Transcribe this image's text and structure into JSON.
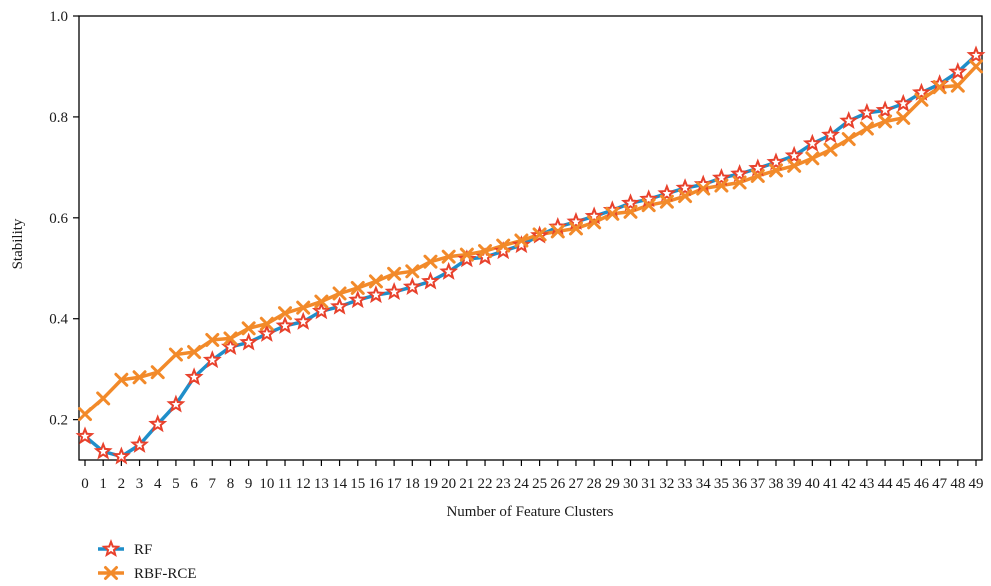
{
  "chart_data": {
    "type": "line",
    "title": "",
    "xlabel": "Number of Feature Clusters",
    "ylabel": "Stability",
    "xlim": [
      0,
      49
    ],
    "ylim": [
      0.12,
      1.0
    ],
    "yticks": [
      0.2,
      0.4,
      0.6,
      0.8,
      1.0
    ],
    "ytick_labels": [
      "0.2",
      "0.4",
      "0.6",
      "0.8",
      "1.0"
    ],
    "x": [
      0,
      1,
      2,
      3,
      4,
      5,
      6,
      7,
      8,
      9,
      10,
      11,
      12,
      13,
      14,
      15,
      16,
      17,
      18,
      19,
      20,
      21,
      22,
      23,
      24,
      25,
      26,
      27,
      28,
      29,
      30,
      31,
      32,
      33,
      34,
      35,
      36,
      37,
      38,
      39,
      40,
      41,
      42,
      43,
      44,
      45,
      46,
      47,
      48,
      49
    ],
    "legend_position": "bottom-left",
    "grid": false,
    "series": [
      {
        "name": "RF",
        "color": "#1f8ec9",
        "marker": "star",
        "marker_color": "#e8412c",
        "values": [
          0.167,
          0.137,
          0.127,
          0.15,
          0.191,
          0.23,
          0.284,
          0.318,
          0.344,
          0.353,
          0.37,
          0.386,
          0.394,
          0.415,
          0.424,
          0.437,
          0.447,
          0.453,
          0.463,
          0.474,
          0.493,
          0.518,
          0.522,
          0.534,
          0.546,
          0.565,
          0.582,
          0.592,
          0.603,
          0.615,
          0.629,
          0.637,
          0.648,
          0.659,
          0.666,
          0.679,
          0.687,
          0.698,
          0.71,
          0.723,
          0.747,
          0.764,
          0.792,
          0.808,
          0.813,
          0.826,
          0.848,
          0.865,
          0.889,
          0.922
        ]
      },
      {
        "name": "RBF-RCE",
        "color": "#f28a2a",
        "marker": "x",
        "marker_color": "#f28a2a",
        "values": [
          0.211,
          0.242,
          0.279,
          0.284,
          0.294,
          0.329,
          0.334,
          0.358,
          0.361,
          0.381,
          0.39,
          0.411,
          0.422,
          0.434,
          0.45,
          0.461,
          0.474,
          0.489,
          0.494,
          0.513,
          0.523,
          0.527,
          0.534,
          0.545,
          0.555,
          0.567,
          0.573,
          0.579,
          0.591,
          0.608,
          0.612,
          0.625,
          0.632,
          0.643,
          0.658,
          0.664,
          0.67,
          0.683,
          0.694,
          0.703,
          0.718,
          0.735,
          0.756,
          0.777,
          0.791,
          0.798,
          0.834,
          0.859,
          0.862,
          0.9
        ]
      }
    ]
  }
}
